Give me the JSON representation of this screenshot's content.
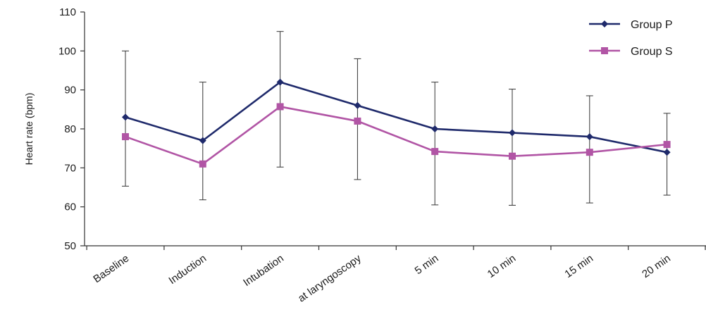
{
  "chart_data": {
    "type": "line",
    "title": "",
    "xlabel": "",
    "ylabel": "Heart rate (bpm)",
    "ylim": [
      50,
      110
    ],
    "yticks": [
      50,
      60,
      70,
      80,
      90,
      100,
      110
    ],
    "grid": false,
    "legend_position": "top-right",
    "categories": [
      "Baseline",
      "Induction",
      "Intubation",
      "at laryngoscopy",
      "5 min",
      "10 min",
      "15 min",
      "20 min"
    ],
    "series": [
      {
        "name": "Group P",
        "color": "#1f2a6b",
        "marker": "diamond",
        "values": [
          83,
          77,
          92,
          86,
          80,
          79,
          78,
          74
        ]
      },
      {
        "name": "Group S",
        "color": "#b155a5",
        "marker": "square",
        "values": [
          78,
          71,
          85.7,
          82,
          74.2,
          73,
          74,
          76
        ]
      }
    ],
    "error_bars": {
      "upper": [
        100,
        92,
        105,
        98,
        92,
        90.2,
        88.5,
        84
      ],
      "lower": [
        65.3,
        61.8,
        70.2,
        67,
        60.5,
        60.4,
        61,
        63
      ],
      "color": "#333333"
    }
  }
}
